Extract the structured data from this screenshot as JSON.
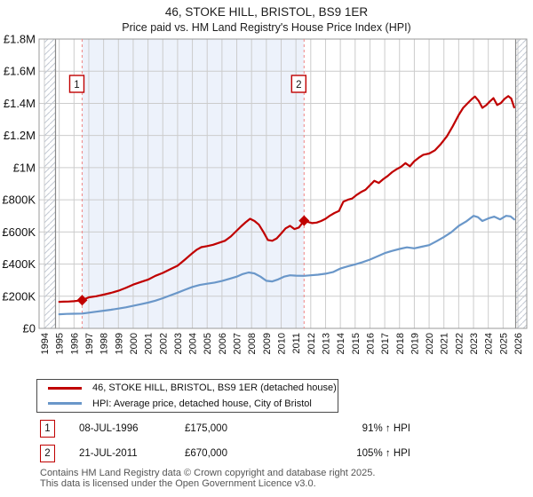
{
  "title": "46, STOKE HILL, BRISTOL, BS9 1ER",
  "subtitle": "Price paid vs. HM Land Registry's House Price Index (HPI)",
  "chart_data": {
    "type": "line",
    "x_axis": {
      "start_year": 1994,
      "end_year": 2026,
      "tick_labels": [
        "1994",
        "1995",
        "1996",
        "1997",
        "1998",
        "1999",
        "2000",
        "2001",
        "2002",
        "2003",
        "2004",
        "2005",
        "2006",
        "2007",
        "2008",
        "2009",
        "2010",
        "2011",
        "2012",
        "2013",
        "2014",
        "2015",
        "2016",
        "2017",
        "2018",
        "2019",
        "2020",
        "2021",
        "2022",
        "2023",
        "2024",
        "2025",
        "2026"
      ]
    },
    "y_axis": {
      "min": 0,
      "max": 1800000,
      "tick_step": 200000,
      "tick_labels": [
        "£0",
        "£200K",
        "£400K",
        "£600K",
        "£800K",
        "£1M",
        "£1.2M",
        "£1.4M",
        "£1.6M",
        "£1.8M"
      ]
    },
    "grid": true,
    "legend_position": "bottom",
    "shaded_span": {
      "from": 1996.55,
      "to": 2011.55,
      "color": "#edf2fb"
    },
    "hatch_spans": [
      [
        1994.0,
        1994.75
      ],
      [
        2025.85,
        2026.6
      ]
    ],
    "events": [
      {
        "label": "1",
        "year": 1996.55,
        "value": 175000
      },
      {
        "label": "2",
        "year": 2011.55,
        "value": 670000
      }
    ],
    "series": [
      {
        "name": "46, STOKE HILL, BRISTOL, BS9 1ER (detached house)",
        "color": "#c00000",
        "points": [
          [
            1995.0,
            165000
          ],
          [
            1995.3,
            166000
          ],
          [
            1995.6,
            167000
          ],
          [
            1996.0,
            169000
          ],
          [
            1996.3,
            172000
          ],
          [
            1996.55,
            175000
          ],
          [
            1997.0,
            193000
          ],
          [
            1997.5,
            200000
          ],
          [
            1998.0,
            210000
          ],
          [
            1998.5,
            221000
          ],
          [
            1999.0,
            234000
          ],
          [
            1999.5,
            252000
          ],
          [
            2000.0,
            272000
          ],
          [
            2000.5,
            288000
          ],
          [
            2001.0,
            303000
          ],
          [
            2001.5,
            327000
          ],
          [
            2002.0,
            345000
          ],
          [
            2002.5,
            368000
          ],
          [
            2003.0,
            390000
          ],
          [
            2003.5,
            428000
          ],
          [
            2004.0,
            468000
          ],
          [
            2004.3,
            490000
          ],
          [
            2004.6,
            505000
          ],
          [
            2005.0,
            512000
          ],
          [
            2005.4,
            520000
          ],
          [
            2005.8,
            532000
          ],
          [
            2006.2,
            545000
          ],
          [
            2006.6,
            572000
          ],
          [
            2007.0,
            608000
          ],
          [
            2007.3,
            635000
          ],
          [
            2007.6,
            660000
          ],
          [
            2007.9,
            682000
          ],
          [
            2008.2,
            668000
          ],
          [
            2008.5,
            645000
          ],
          [
            2008.8,
            600000
          ],
          [
            2009.1,
            550000
          ],
          [
            2009.4,
            545000
          ],
          [
            2009.7,
            560000
          ],
          [
            2010.0,
            590000
          ],
          [
            2010.3,
            622000
          ],
          [
            2010.6,
            638000
          ],
          [
            2010.9,
            618000
          ],
          [
            2011.2,
            628000
          ],
          [
            2011.55,
            670000
          ],
          [
            2011.8,
            662000
          ],
          [
            2012.1,
            655000
          ],
          [
            2012.4,
            658000
          ],
          [
            2012.7,
            668000
          ],
          [
            2013.0,
            682000
          ],
          [
            2013.3,
            702000
          ],
          [
            2013.6,
            718000
          ],
          [
            2013.9,
            730000
          ],
          [
            2014.2,
            788000
          ],
          [
            2014.5,
            800000
          ],
          [
            2014.8,
            808000
          ],
          [
            2015.1,
            830000
          ],
          [
            2015.4,
            848000
          ],
          [
            2015.7,
            862000
          ],
          [
            2016.0,
            890000
          ],
          [
            2016.3,
            918000
          ],
          [
            2016.6,
            905000
          ],
          [
            2016.9,
            928000
          ],
          [
            2017.2,
            948000
          ],
          [
            2017.5,
            972000
          ],
          [
            2017.8,
            990000
          ],
          [
            2018.1,
            1005000
          ],
          [
            2018.4,
            1028000
          ],
          [
            2018.7,
            1008000
          ],
          [
            2019.0,
            1040000
          ],
          [
            2019.3,
            1062000
          ],
          [
            2019.6,
            1080000
          ],
          [
            2020.0,
            1088000
          ],
          [
            2020.4,
            1108000
          ],
          [
            2020.8,
            1148000
          ],
          [
            2021.2,
            1195000
          ],
          [
            2021.6,
            1258000
          ],
          [
            2022.0,
            1328000
          ],
          [
            2022.3,
            1372000
          ],
          [
            2022.6,
            1400000
          ],
          [
            2022.9,
            1428000
          ],
          [
            2023.1,
            1442000
          ],
          [
            2023.35,
            1415000
          ],
          [
            2023.6,
            1372000
          ],
          [
            2023.85,
            1388000
          ],
          [
            2024.1,
            1412000
          ],
          [
            2024.35,
            1432000
          ],
          [
            2024.6,
            1390000
          ],
          [
            2024.85,
            1402000
          ],
          [
            2025.1,
            1428000
          ],
          [
            2025.35,
            1445000
          ],
          [
            2025.55,
            1430000
          ],
          [
            2025.75,
            1375000
          ]
        ]
      },
      {
        "name": "HPI: Average price, detached house, City of Bristol",
        "color": "#6a97c9",
        "points": [
          [
            1995.0,
            88000
          ],
          [
            1995.5,
            90000
          ],
          [
            1996.0,
            91000
          ],
          [
            1996.55,
            92000
          ],
          [
            1997.0,
            98000
          ],
          [
            1997.5,
            104000
          ],
          [
            1998.0,
            110000
          ],
          [
            1998.5,
            116000
          ],
          [
            1999.0,
            123000
          ],
          [
            1999.5,
            131000
          ],
          [
            2000.0,
            140000
          ],
          [
            2000.5,
            150000
          ],
          [
            2001.0,
            160000
          ],
          [
            2001.5,
            172000
          ],
          [
            2002.0,
            188000
          ],
          [
            2002.5,
            205000
          ],
          [
            2003.0,
            222000
          ],
          [
            2003.5,
            240000
          ],
          [
            2004.0,
            258000
          ],
          [
            2004.5,
            270000
          ],
          [
            2005.0,
            278000
          ],
          [
            2005.5,
            285000
          ],
          [
            2006.0,
            295000
          ],
          [
            2006.5,
            308000
          ],
          [
            2007.0,
            322000
          ],
          [
            2007.4,
            338000
          ],
          [
            2007.8,
            348000
          ],
          [
            2008.2,
            342000
          ],
          [
            2008.6,
            322000
          ],
          [
            2009.0,
            296000
          ],
          [
            2009.4,
            292000
          ],
          [
            2009.8,
            305000
          ],
          [
            2010.2,
            322000
          ],
          [
            2010.6,
            330000
          ],
          [
            2011.0,
            328000
          ],
          [
            2011.55,
            327000
          ],
          [
            2012.0,
            330000
          ],
          [
            2012.5,
            334000
          ],
          [
            2013.0,
            340000
          ],
          [
            2013.5,
            350000
          ],
          [
            2014.0,
            372000
          ],
          [
            2014.5,
            386000
          ],
          [
            2015.0,
            398000
          ],
          [
            2015.5,
            412000
          ],
          [
            2016.0,
            428000
          ],
          [
            2016.5,
            448000
          ],
          [
            2017.0,
            468000
          ],
          [
            2017.5,
            482000
          ],
          [
            2018.0,
            494000
          ],
          [
            2018.5,
            504000
          ],
          [
            2019.0,
            498000
          ],
          [
            2019.5,
            508000
          ],
          [
            2020.0,
            518000
          ],
          [
            2020.5,
            542000
          ],
          [
            2021.0,
            568000
          ],
          [
            2021.5,
            598000
          ],
          [
            2022.0,
            638000
          ],
          [
            2022.5,
            665000
          ],
          [
            2023.0,
            700000
          ],
          [
            2023.3,
            692000
          ],
          [
            2023.6,
            668000
          ],
          [
            2024.0,
            684000
          ],
          [
            2024.4,
            695000
          ],
          [
            2024.8,
            678000
          ],
          [
            2025.2,
            700000
          ],
          [
            2025.5,
            697000
          ],
          [
            2025.75,
            678000
          ]
        ]
      }
    ],
    "colors": {
      "grid": "#cccccc",
      "plot_border": "#999999",
      "hatch_line": "#c3c9d3",
      "hatch_edge": "#888888",
      "event_line": "#f08f8f",
      "event_box_border": "#c00000",
      "text": "#111111"
    }
  },
  "legend": {
    "items": [
      {
        "label": "46, STOKE HILL, BRISTOL, BS9 1ER (detached house)",
        "color": "#c00000"
      },
      {
        "label": "HPI: Average price, detached house, City of Bristol",
        "color": "#6a97c9"
      }
    ]
  },
  "annotations": [
    {
      "num": "1",
      "date": "08-JUL-1996",
      "price": "£175,000",
      "hpi": "91% ↑ HPI"
    },
    {
      "num": "2",
      "date": "21-JUL-2011",
      "price": "£670,000",
      "hpi": "105% ↑ HPI"
    }
  ],
  "footer": {
    "line1": "Contains HM Land Registry data © Crown copyright and database right 2025.",
    "line2": "This data is licensed under the Open Government Licence v3.0."
  }
}
